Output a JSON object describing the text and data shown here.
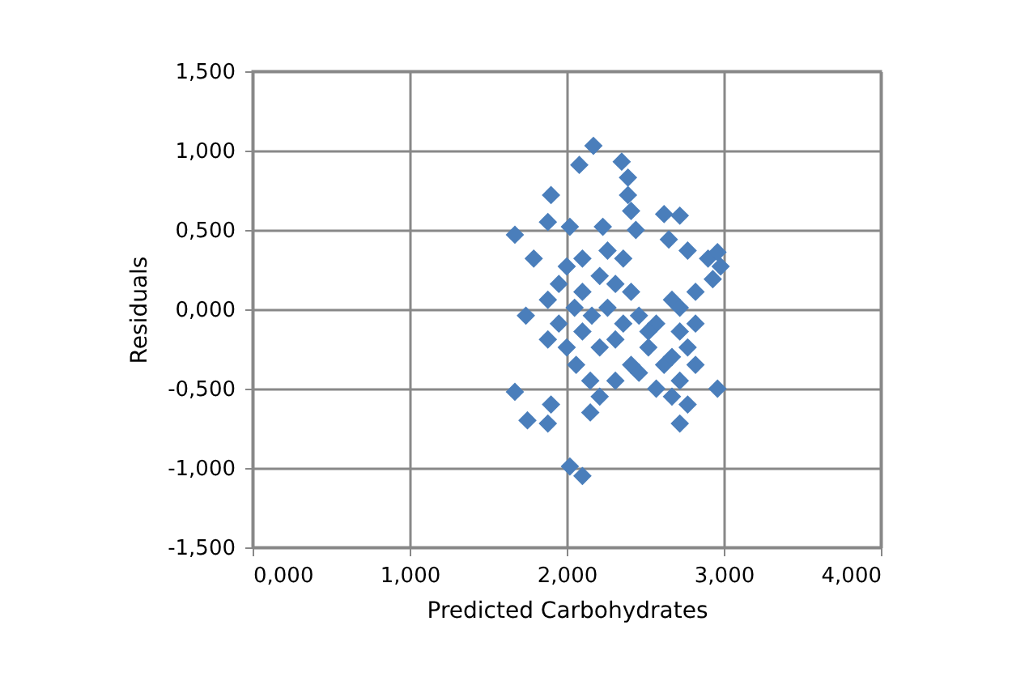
{
  "chart_data": {
    "type": "scatter",
    "xlabel": "Predicted Carbohydrates",
    "ylabel": "Residuals",
    "marker": "diamond",
    "grid": true,
    "xlim": [
      0,
      4
    ],
    "ylim": [
      -1.5,
      1.5
    ],
    "xticks": [
      {
        "value": 0,
        "label": "0,000"
      },
      {
        "value": 1,
        "label": "1,000"
      },
      {
        "value": 2,
        "label": "2,000"
      },
      {
        "value": 3,
        "label": "3,000"
      },
      {
        "value": 4,
        "label": "4,000"
      }
    ],
    "yticks": [
      {
        "value": -1.5,
        "label": "-1,500"
      },
      {
        "value": -1,
        "label": "-1,000"
      },
      {
        "value": -0.5,
        "label": "-0,500"
      },
      {
        "value": 0,
        "label": "0,000"
      },
      {
        "value": 0.5,
        "label": "0,500"
      },
      {
        "value": 1,
        "label": "1,000"
      },
      {
        "value": 1.5,
        "label": "1,500"
      }
    ],
    "series": [
      {
        "color": "#4a7ebb",
        "x": [
          2.17,
          2.08,
          2.35,
          2.39,
          2.39,
          2.41,
          2.44,
          1.9,
          1.67,
          1.88,
          2.02,
          2.23,
          2.0,
          1.79,
          2.62,
          2.72,
          2.65,
          2.77,
          2.9,
          2.98,
          2.93,
          2.96,
          2.82,
          2.67,
          2.72,
          1.74,
          1.88,
          1.95,
          1.88,
          2.0,
          2.1,
          2.06,
          2.15,
          2.21,
          2.31,
          2.41,
          2.52,
          2.62,
          2.72,
          2.77,
          2.72,
          2.96,
          2.57,
          2.72,
          2.77,
          2.67,
          1.67,
          1.75,
          1.88,
          1.9,
          2.02,
          2.1,
          2.15,
          2.1,
          2.21,
          2.31,
          2.41,
          2.26,
          2.16,
          2.36,
          2.46,
          2.21,
          2.31,
          2.1,
          2.36,
          2.26,
          1.95,
          2.05,
          2.52,
          2.46,
          2.57,
          2.67,
          2.82,
          2.82
        ],
        "values": [
          1.03,
          0.91,
          0.93,
          0.83,
          0.72,
          0.62,
          0.5,
          0.72,
          0.47,
          0.55,
          0.52,
          0.52,
          0.27,
          0.32,
          0.6,
          0.59,
          0.44,
          0.37,
          0.32,
          0.27,
          0.19,
          0.36,
          0.11,
          0.06,
          0.01,
          -0.04,
          0.06,
          -0.09,
          -0.19,
          -0.24,
          -0.14,
          -0.35,
          -0.45,
          -0.55,
          -0.45,
          -0.35,
          -0.24,
          -0.35,
          -0.45,
          -0.6,
          -0.72,
          -0.5,
          -0.09,
          -0.14,
          -0.24,
          -0.3,
          -0.52,
          -0.7,
          -0.72,
          -0.6,
          -0.99,
          -1.05,
          -0.65,
          0.11,
          0.21,
          0.16,
          0.11,
          0.01,
          -0.04,
          -0.09,
          -0.04,
          -0.24,
          -0.19,
          0.32,
          0.32,
          0.37,
          0.16,
          0.01,
          -0.14,
          -0.4,
          -0.5,
          -0.55,
          -0.09,
          -0.35
        ]
      }
    ]
  }
}
